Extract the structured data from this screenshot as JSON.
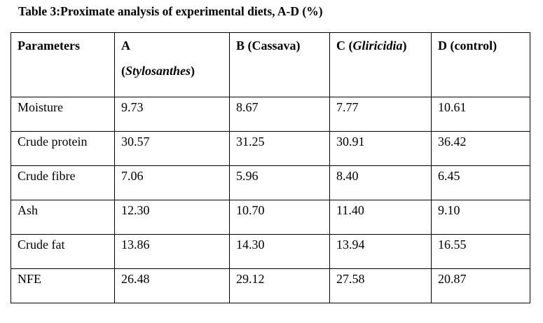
{
  "caption": "Table 3:Proximate analysis of experimental diets, A-D (%)",
  "table": {
    "headers": {
      "parameters": "Parameters",
      "a_line1": "A",
      "a_open": "(",
      "a_name": "Stylosanthes",
      "a_close": ")",
      "b": "B (Cassava)",
      "c_open": "C (",
      "c_name": "Gliricidia",
      "c_close": ")",
      "d": "D (control)"
    },
    "rows": [
      {
        "parameter": "Moisture",
        "a": "9.73",
        "b": "8.67",
        "c": "7.77",
        "d": "10.61"
      },
      {
        "parameter": "Crude protein",
        "a": "30.57",
        "b": "31.25",
        "c": "30.91",
        "d": "36.42"
      },
      {
        "parameter": "Crude fibre",
        "a": "7.06",
        "b": "5.96",
        "c": "8.40",
        "d": "6.45"
      },
      {
        "parameter": "Ash",
        "a": "12.30",
        "b": "10.70",
        "c": "11.40",
        "d": "9.10"
      },
      {
        "parameter": "Crude fat",
        "a": "13.86",
        "b": "14.30",
        "c": "13.94",
        "d": "16.55"
      },
      {
        "parameter": "NFE",
        "a": "26.48",
        "b": "29.12",
        "c": "27.58",
        "d": "20.87"
      }
    ]
  }
}
